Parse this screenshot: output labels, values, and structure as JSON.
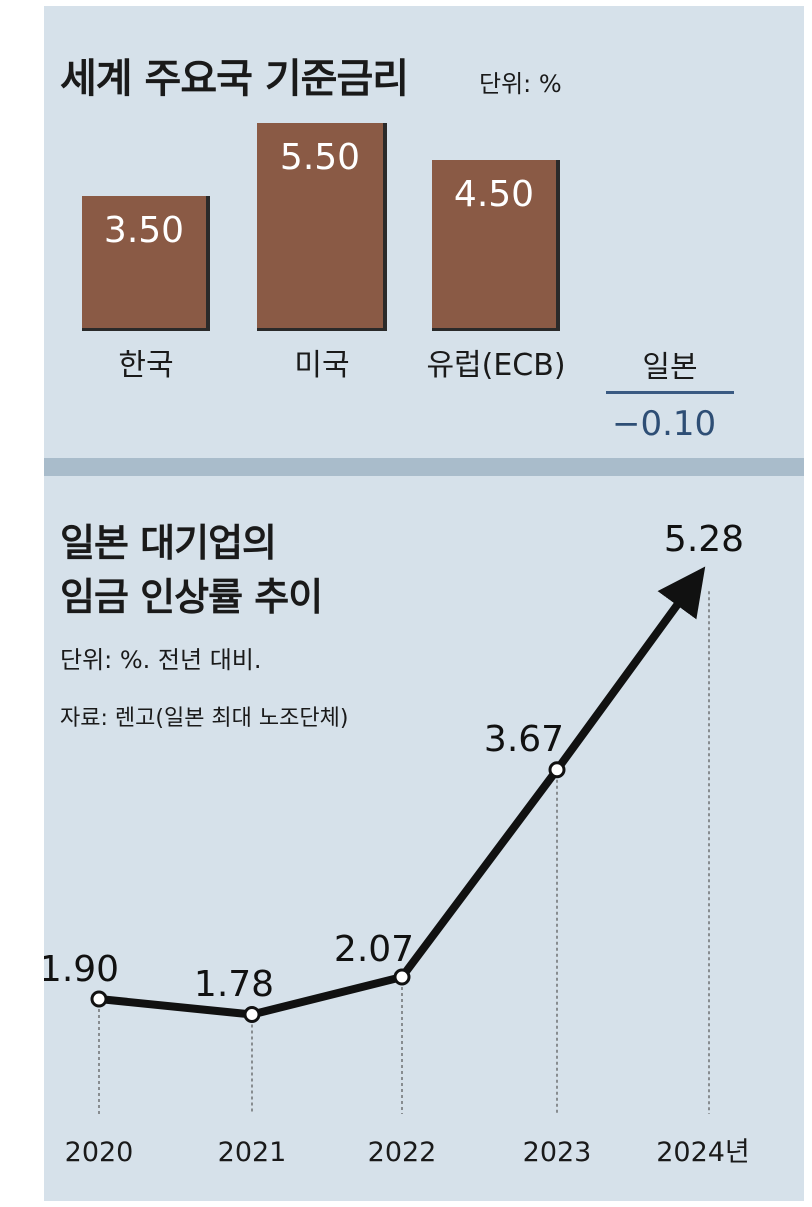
{
  "chart_data": [
    {
      "type": "bar",
      "title": "세계 주요국 기준금리",
      "unit_label": "단위: %",
      "categories": [
        "한국",
        "미국",
        "유럽(ECB)",
        "일본"
      ],
      "values": [
        3.5,
        5.5,
        4.5,
        -0.1
      ],
      "value_labels": [
        "3.50",
        "5.50",
        "4.50",
        "−0.10"
      ],
      "colors": {
        "bar": "#8a5a45",
        "negative": "#2e4e75"
      }
    },
    {
      "type": "line",
      "title_lines": [
        "일본 대기업의",
        "임금 인상률 추이"
      ],
      "unit_label": "단위: %. 전년 대비.",
      "source": "자료: 렌고(일본 최대 노조단체)",
      "x": [
        "2020",
        "2021",
        "2022",
        "2023",
        "2024년"
      ],
      "values": [
        1.9,
        1.78,
        2.07,
        3.67,
        5.28
      ],
      "value_labels": [
        "1.90",
        "1.78",
        "2.07",
        "3.67",
        "5.28"
      ],
      "colors": {
        "line": "#111111",
        "background": "#d6e1ea"
      }
    }
  ]
}
